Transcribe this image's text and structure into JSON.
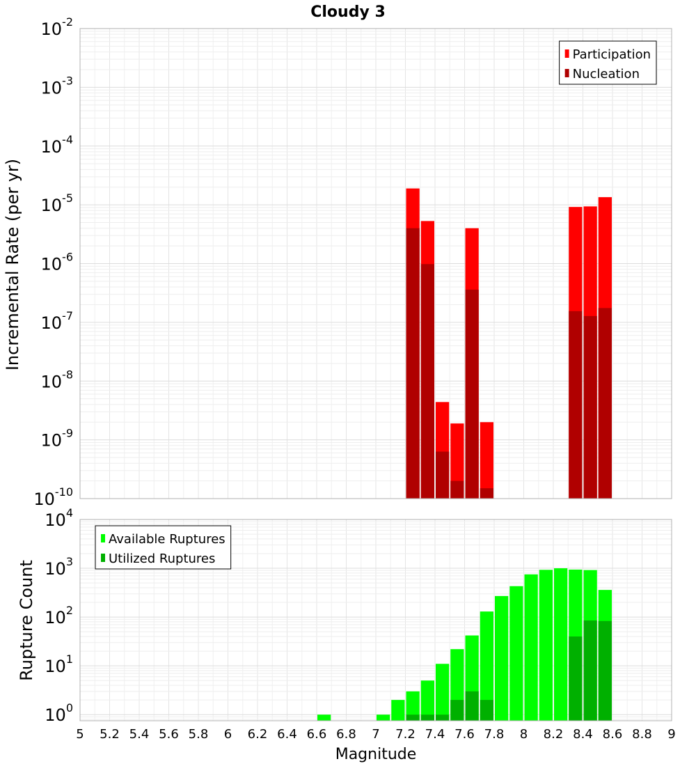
{
  "chart_data": [
    {
      "type": "bar",
      "title": "Cloudy 3",
      "ylabel": "Incremental Rate (per yr)",
      "xlabel": "",
      "xlim": [
        5,
        9
      ],
      "ylim": [
        1e-10,
        0.01
      ],
      "yscale": "log",
      "grid": true,
      "legend_position": "top-right",
      "bar_width": 0.1,
      "y_ticks": [
        {
          "base": "10",
          "exp": "-2"
        },
        {
          "base": "10",
          "exp": "-3"
        },
        {
          "base": "10",
          "exp": "-4"
        },
        {
          "base": "10",
          "exp": "-5"
        },
        {
          "base": "10",
          "exp": "-6"
        },
        {
          "base": "10",
          "exp": "-7"
        },
        {
          "base": "10",
          "exp": "-8"
        },
        {
          "base": "10",
          "exp": "-9"
        },
        {
          "base": "10",
          "exp": "-10"
        }
      ],
      "categories": [
        7.25,
        7.35,
        7.45,
        7.55,
        7.65,
        7.75,
        8.35,
        8.45,
        8.55
      ],
      "series": [
        {
          "name": "Participation",
          "color": "#ff0000",
          "values": [
            1.9e-05,
            5.3e-06,
            4.4e-09,
            1.9e-09,
            4e-06,
            2e-09,
            9.2e-06,
            9.4e-06,
            1.35e-05
          ]
        },
        {
          "name": "Nucleation",
          "color": "#b00000",
          "values": [
            4e-06,
            9.8e-07,
            6.3e-10,
            2e-10,
            3.6e-07,
            1.5e-10,
            1.55e-07,
            1.28e-07,
            1.75e-07
          ]
        }
      ]
    },
    {
      "type": "bar",
      "title": "",
      "ylabel": "Rupture Count",
      "xlabel": "Magnitude",
      "xlim": [
        5,
        9
      ],
      "ylim": [
        0.75,
        10000
      ],
      "yscale": "log",
      "grid": true,
      "legend_position": "top-left",
      "bar_width": 0.1,
      "x_ticks": [
        "5",
        "5.2",
        "5.4",
        "5.6",
        "5.8",
        "6",
        "6.2",
        "6.4",
        "6.6",
        "6.8",
        "7",
        "7.2",
        "7.4",
        "7.6",
        "7.8",
        "8",
        "8.2",
        "8.4",
        "8.6",
        "8.8",
        "9"
      ],
      "y_ticks": [
        {
          "base": "10",
          "exp": "4"
        },
        {
          "base": "10",
          "exp": "3"
        },
        {
          "base": "10",
          "exp": "2"
        },
        {
          "base": "10",
          "exp": "1"
        },
        {
          "base": "10",
          "exp": "0"
        }
      ],
      "categories": [
        6.65,
        7.05,
        7.15,
        7.25,
        7.35,
        7.45,
        7.55,
        7.65,
        7.75,
        7.85,
        7.95,
        8.05,
        8.15,
        8.25,
        8.35,
        8.45,
        8.55
      ],
      "series": [
        {
          "name": "Available Ruptures",
          "color": "#00ff00",
          "values": [
            1,
            1,
            2,
            3,
            5,
            11,
            22,
            42,
            130,
            270,
            430,
            750,
            930,
            1000,
            940,
            920,
            360
          ]
        },
        {
          "name": "Utilized Ruptures",
          "color": "#00b000",
          "values": [
            0,
            0,
            0,
            1,
            1,
            1,
            2,
            3,
            2,
            0,
            0,
            0,
            0,
            0,
            40,
            85,
            83
          ]
        }
      ]
    }
  ]
}
